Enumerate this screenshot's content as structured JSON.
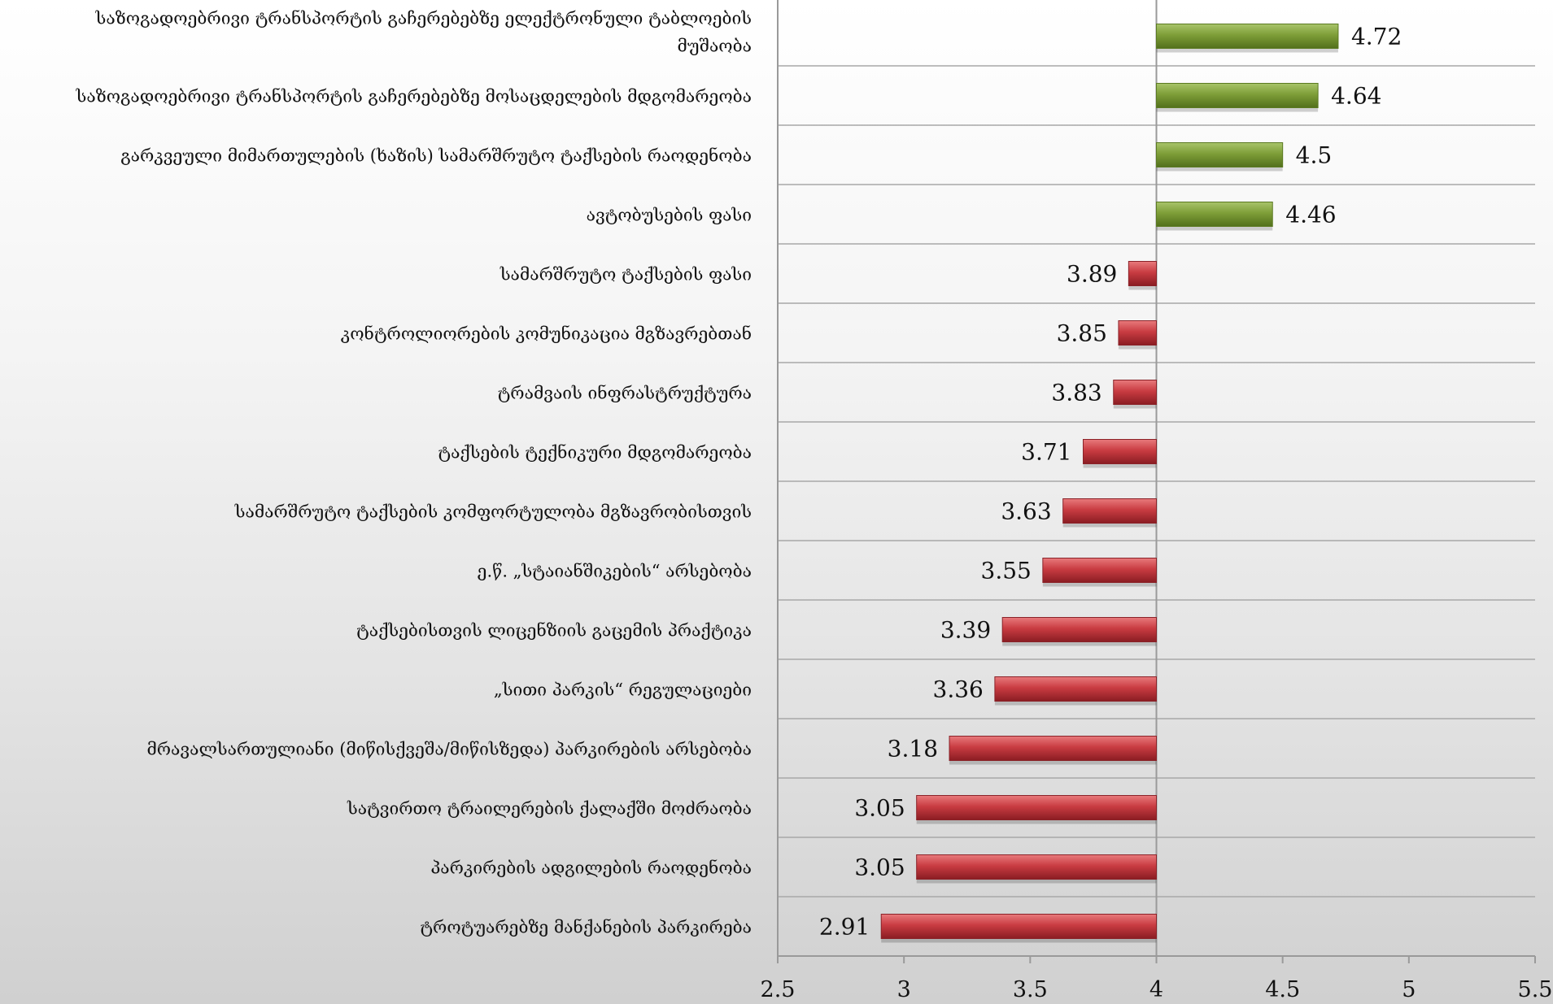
{
  "chart_data": {
    "type": "bar",
    "orientation": "horizontal",
    "baseline": 4,
    "xlim": [
      2.5,
      5.5
    ],
    "x_ticks": [
      "2.5",
      "3",
      "3.5",
      "4",
      "4.5",
      "5",
      "5.5"
    ],
    "grid": true,
    "legend": "none",
    "colors": {
      "above": "#7a9a35",
      "below": "#c03a3f"
    },
    "categories": [
      [
        "საზოგადოებრივი ტრანსპორტის გაჩერებებზე  ელექტრონული ტაბლოების",
        "მუშაობა"
      ],
      [
        "საზოგადოებრივი ტრანსპორტის გაჩერებებზე  მოსაცდელების მდგომარეობა"
      ],
      [
        "გარკვეული მიმართულების (ხაზის) სამარშრუტო ტაქსების რაოდენობა"
      ],
      [
        "ავტობუსების ფასი"
      ],
      [
        "სამარშრუტო ტაქსების ფასი"
      ],
      [
        "კონტროლიორების კომუნიკაცია მგზავრებთან"
      ],
      [
        "ტრამვაის ინფრასტრუქტურა"
      ],
      [
        "ტაქსების ტექნიკური მდგომარეობა"
      ],
      [
        "სამარშრუტო ტაქსების კომფორტულობა მგზავრობისთვის"
      ],
      [
        "ე.წ. „სტაიანშიკების“ არსებობა"
      ],
      [
        "ტაქსებისთვის ლიცენზიის გაცემის პრაქტიკა"
      ],
      [
        "„სითი პარკის“  რეგულაციები"
      ],
      [
        "მრავალსართულიანი (მიწისქვეშა/მიწისზედა)  პარკირების არსებობა"
      ],
      [
        "სატვირთო ტრაილერების ქალაქში მოძრაობა"
      ],
      [
        "პარკირების ადგილების რაოდენობა"
      ],
      [
        "ტროტუარებზე მანქანების პარკირება"
      ]
    ],
    "values": [
      4.72,
      4.64,
      4.5,
      4.46,
      3.89,
      3.85,
      3.83,
      3.71,
      3.63,
      3.55,
      3.39,
      3.36,
      3.18,
      3.05,
      3.05,
      2.91
    ],
    "value_labels": [
      "4.72",
      "4.64",
      "4.5",
      "4.46",
      "3.89",
      "3.85",
      "3.83",
      "3.71",
      "3.63",
      "3.55",
      "3.39",
      "3.36",
      "3.18",
      "3.05",
      "3.05",
      "2.91"
    ]
  }
}
